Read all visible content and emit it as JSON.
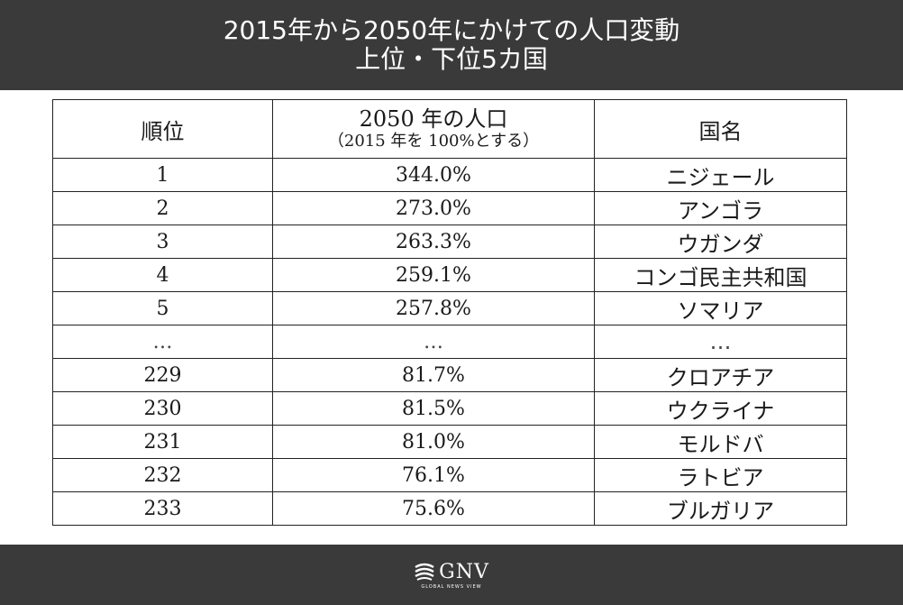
{
  "header": {
    "title_line1": "2015年から2050年にかけての人口変動",
    "title_line2": "上位・下位5カ国"
  },
  "chart_data": {
    "type": "table",
    "columns": {
      "rank": "順位",
      "population_main": "2050 年の人口",
      "population_sub": "（2015 年を 100%とする）",
      "country": "国名"
    },
    "rows": [
      {
        "rank": "1",
        "value": "344.0%",
        "country": "ニジェール"
      },
      {
        "rank": "2",
        "value": "273.0%",
        "country": "アンゴラ"
      },
      {
        "rank": "3",
        "value": "263.3%",
        "country": "ウガンダ"
      },
      {
        "rank": "4",
        "value": "259.1%",
        "country": "コンゴ民主共和国"
      },
      {
        "rank": "5",
        "value": "257.8%",
        "country": "ソマリア"
      },
      {
        "rank": "…",
        "value": "…",
        "country": "…"
      },
      {
        "rank": "229",
        "value": "81.7%",
        "country": "クロアチア"
      },
      {
        "rank": "230",
        "value": "81.5%",
        "country": "ウクライナ"
      },
      {
        "rank": "231",
        "value": "81.0%",
        "country": "モルドバ"
      },
      {
        "rank": "232",
        "value": "76.1%",
        "country": "ラトビア"
      },
      {
        "rank": "233",
        "value": "75.6%",
        "country": "ブルガリア"
      }
    ]
  },
  "footer": {
    "logo_text": "GNV",
    "logo_subtext": "GLOBAL NEWS VIEW"
  }
}
